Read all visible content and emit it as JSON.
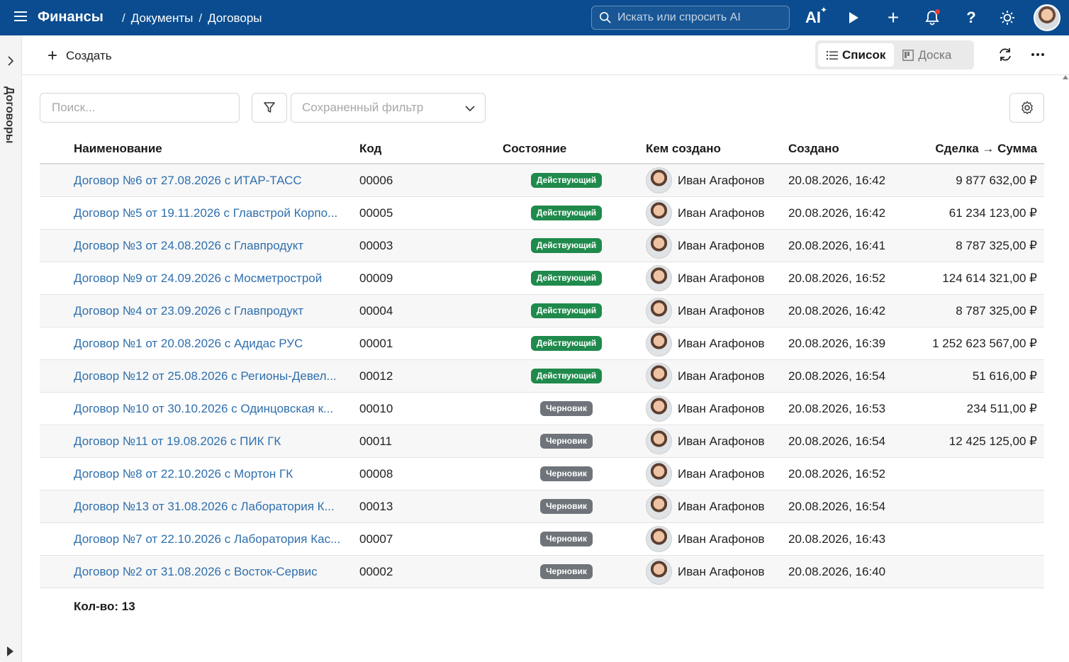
{
  "app": {
    "title": "Финансы",
    "breadcrumb": [
      "Документы",
      "Договоры"
    ],
    "search_placeholder": "Искать или спросить AI",
    "ai_label": "AI"
  },
  "sidebar": {
    "label": "Договоры"
  },
  "toolbar": {
    "create_label": "Создать",
    "view_list_label": "Список",
    "view_board_label": "Доска"
  },
  "filters": {
    "search_placeholder": "Поиск...",
    "saved_filter_placeholder": "Сохраненный фильтр"
  },
  "table": {
    "columns": [
      "Наименование",
      "Код",
      "Состояние",
      "Кем создано",
      "Создано",
      "Сделка → Сумма"
    ],
    "rows": [
      {
        "name": "Договор №6 от 27.08.2026 с ИТАР-ТАСС",
        "code": "00006",
        "state": "Действующий",
        "state_kind": "active",
        "user": "Иван Агафонов",
        "created": "20.08.2026, 16:42",
        "sum": "9 877 632,00 ₽"
      },
      {
        "name": "Договор №5 от 19.11.2026 с Главстрой Корпо...",
        "code": "00005",
        "state": "Действующий",
        "state_kind": "active",
        "user": "Иван Агафонов",
        "created": "20.08.2026, 16:42",
        "sum": "61 234 123,00 ₽"
      },
      {
        "name": "Договор №3 от 24.08.2026 с Главпродукт",
        "code": "00003",
        "state": "Действующий",
        "state_kind": "active",
        "user": "Иван Агафонов",
        "created": "20.08.2026, 16:41",
        "sum": "8 787 325,00 ₽"
      },
      {
        "name": "Договор №9 от 24.09.2026 с Мосметрострой",
        "code": "00009",
        "state": "Действующий",
        "state_kind": "active",
        "user": "Иван Агафонов",
        "created": "20.08.2026, 16:52",
        "sum": "124 614 321,00 ₽"
      },
      {
        "name": "Договор №4 от 23.09.2026 с Главпродукт",
        "code": "00004",
        "state": "Действующий",
        "state_kind": "active",
        "user": "Иван Агафонов",
        "created": "20.08.2026, 16:42",
        "sum": "8 787 325,00 ₽"
      },
      {
        "name": "Договор №1 от 20.08.2026 с Адидас РУС",
        "code": "00001",
        "state": "Действующий",
        "state_kind": "active",
        "user": "Иван Агафонов",
        "created": "20.08.2026, 16:39",
        "sum": "1 252 623 567,00 ₽"
      },
      {
        "name": "Договор №12 от 25.08.2026 с Регионы-Девел...",
        "code": "00012",
        "state": "Действующий",
        "state_kind": "active",
        "user": "Иван Агафонов",
        "created": "20.08.2026, 16:54",
        "sum": "51 616,00 ₽"
      },
      {
        "name": "Договор №10 от 30.10.2026 с Одинцовская к...",
        "code": "00010",
        "state": "Черновик",
        "state_kind": "draft",
        "user": "Иван Агафонов",
        "created": "20.08.2026, 16:53",
        "sum": "234 511,00 ₽"
      },
      {
        "name": "Договор №11 от 19.08.2026 с ПИК ГК",
        "code": "00011",
        "state": "Черновик",
        "state_kind": "draft",
        "user": "Иван Агафонов",
        "created": "20.08.2026, 16:54",
        "sum": "12 425 125,00 ₽"
      },
      {
        "name": "Договор №8 от 22.10.2026 с Мортон ГК",
        "code": "00008",
        "state": "Черновик",
        "state_kind": "draft",
        "user": "Иван Агафонов",
        "created": "20.08.2026, 16:52",
        "sum": ""
      },
      {
        "name": "Договор №13 от 31.08.2026 с Лаборатория К...",
        "code": "00013",
        "state": "Черновик",
        "state_kind": "draft",
        "user": "Иван Агафонов",
        "created": "20.08.2026, 16:54",
        "sum": ""
      },
      {
        "name": "Договор №7 от 22.10.2026 с Лаборатория Кас...",
        "code": "00007",
        "state": "Черновик",
        "state_kind": "draft",
        "user": "Иван Агафонов",
        "created": "20.08.2026, 16:43",
        "sum": ""
      },
      {
        "name": "Договор №2 от 31.08.2026 с Восток-Сервис",
        "code": "00002",
        "state": "Черновик",
        "state_kind": "draft",
        "user": "Иван Агафонов",
        "created": "20.08.2026, 16:40",
        "sum": ""
      }
    ]
  },
  "footer": {
    "count_text": "Кол-во: 13"
  },
  "colors": {
    "topbar": "#0a4c8f",
    "link": "#2f6fad",
    "badge_active": "#1f8a4c",
    "badge_draft": "#6e7479"
  },
  "icons": [
    "hamburger-icon",
    "search-icon",
    "ai-icon",
    "play-icon",
    "plus-icon",
    "bell-icon",
    "help-icon",
    "sun-icon",
    "chevron-right-icon",
    "list-icon",
    "board-icon",
    "refresh-icon",
    "more-icon",
    "filter-icon",
    "chevron-down-icon",
    "gear-icon"
  ]
}
